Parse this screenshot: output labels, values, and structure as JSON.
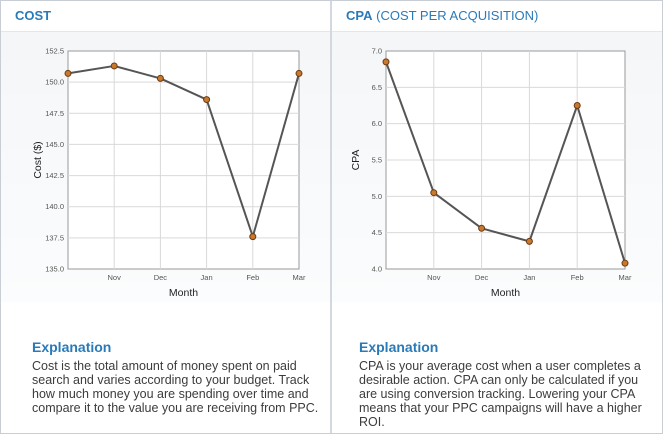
{
  "panels": {
    "cost": {
      "title": "COST",
      "subtitle": "",
      "explanation_title": "Explanation",
      "explanation_text": "Cost is the total amount of money spent on paid search and varies according to your budget. Track how much money you are spending over time and compare it to the value you are receiving from PPC."
    },
    "cpa": {
      "title": "CPA",
      "subtitle": "(COST PER ACQUISITION)",
      "explanation_title": "Explanation",
      "explanation_text": "CPA is your average cost when a user completes a desirable action. CPA can only be calculated if you are using conversion tracking. Lowering your CPA means that your PPC campaigns will have a higher ROI."
    }
  },
  "colors": {
    "title": "#2a7ab8",
    "line": "#555555",
    "marker_fill": "#c8792e",
    "marker_stroke": "#6b3a10",
    "grid": "#d9d9d9"
  },
  "chart_data": [
    {
      "type": "line",
      "title": "",
      "xlabel": "Month",
      "ylabel": "Cost ($)",
      "x": [
        "",
        "Nov",
        "Dec",
        "Jan",
        "Feb",
        "Mar"
      ],
      "values": [
        150.7,
        151.3,
        150.3,
        148.6,
        137.6,
        150.7
      ],
      "ylim": [
        135.0,
        152.5
      ],
      "yticks": [
        "135.0",
        "137.5",
        "140.0",
        "142.5",
        "145.0",
        "147.5",
        "150.0",
        "152.5"
      ],
      "grid": true
    },
    {
      "type": "line",
      "title": "",
      "xlabel": "Month",
      "ylabel": "CPA",
      "x": [
        "",
        "Nov",
        "Dec",
        "Jan",
        "Feb",
        "Mar"
      ],
      "values": [
        6.85,
        5.05,
        4.56,
        4.38,
        6.25,
        4.08
      ],
      "ylim": [
        4.0,
        7.0
      ],
      "yticks": [
        "4.0",
        "4.5",
        "5.0",
        "5.5",
        "6.0",
        "6.5",
        "7.0"
      ],
      "grid": true
    }
  ]
}
